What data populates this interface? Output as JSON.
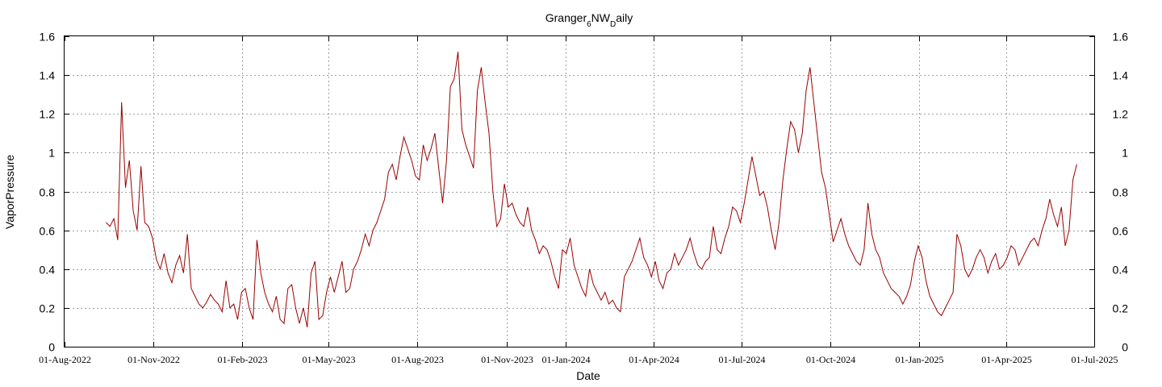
{
  "chart_data": {
    "type": "line",
    "title": {
      "base": "Granger",
      "sub1": "6",
      "mid": "NW",
      "sub2": "D",
      "tail": "aily"
    },
    "xlabel": "Date",
    "ylabel": "VaporPressure",
    "ylim": [
      0,
      1.6
    ],
    "xlim": [
      "2022-08-01",
      "2025-07-01"
    ],
    "yticks": [
      "0",
      "0.2",
      "0.4",
      "0.6",
      "0.8",
      "1",
      "1.2",
      "1.4",
      "1.6"
    ],
    "xticks": [
      {
        "date": "2022-08-01",
        "label": "01-Aug-2022"
      },
      {
        "date": "2022-11-01",
        "label": "01-Nov-2022"
      },
      {
        "date": "2023-02-01",
        "label": "01-Feb-2023"
      },
      {
        "date": "2023-05-01",
        "label": "01-May-2023"
      },
      {
        "date": "2023-08-01",
        "label": "01-Aug-2023"
      },
      {
        "date": "2023-11-01",
        "label": "01-Nov-2023"
      },
      {
        "date": "2024-01-01",
        "label": "01-Jan-2024"
      },
      {
        "date": "2024-04-01",
        "label": "01-Apr-2024"
      },
      {
        "date": "2024-07-01",
        "label": "01-Jul-2024"
      },
      {
        "date": "2024-10-01",
        "label": "01-Oct-2024"
      },
      {
        "date": "2025-01-01",
        "label": "01-Jan-2025"
      },
      {
        "date": "2025-04-01",
        "label": "01-Apr-2025"
      },
      {
        "date": "2025-07-01",
        "label": "01-Jul-2025"
      }
    ],
    "grid": true,
    "colors": {
      "series": "#990000",
      "grid": "#a0a0a0",
      "axis": "#000000"
    },
    "series": [
      {
        "start": "2022-09-13",
        "step_days": 4,
        "values": [
          0.64,
          0.62,
          0.66,
          0.55,
          1.26,
          0.82,
          0.96,
          0.7,
          0.6,
          0.93,
          0.64,
          0.62,
          0.56,
          0.45,
          0.4,
          0.48,
          0.38,
          0.33,
          0.42,
          0.47,
          0.38,
          0.58,
          0.3,
          0.26,
          0.22,
          0.2,
          0.23,
          0.27,
          0.24,
          0.22,
          0.18,
          0.34,
          0.2,
          0.22,
          0.14,
          0.28,
          0.3,
          0.2,
          0.14,
          0.55,
          0.38,
          0.28,
          0.22,
          0.18,
          0.26,
          0.14,
          0.12,
          0.3,
          0.32,
          0.2,
          0.12,
          0.2,
          0.1,
          0.38,
          0.44,
          0.14,
          0.16,
          0.28,
          0.36,
          0.28,
          0.36,
          0.44,
          0.28,
          0.3,
          0.4,
          0.44,
          0.5,
          0.58,
          0.52,
          0.6,
          0.64,
          0.7,
          0.76,
          0.9,
          0.94,
          0.86,
          0.98,
          1.08,
          1.02,
          0.96,
          0.88,
          0.86,
          1.04,
          0.96,
          1.02,
          1.1,
          0.92,
          0.74,
          0.96,
          1.34,
          1.38,
          1.52,
          1.12,
          1.04,
          0.98,
          0.92,
          1.32,
          1.44,
          1.26,
          1.1,
          0.8,
          0.62,
          0.66,
          0.84,
          0.72,
          0.74,
          0.68,
          0.64,
          0.62,
          0.72,
          0.6,
          0.55,
          0.48,
          0.52,
          0.5,
          0.44,
          0.36,
          0.3,
          0.5,
          0.48,
          0.56,
          0.42,
          0.36,
          0.3,
          0.26,
          0.4,
          0.32,
          0.28,
          0.24,
          0.28,
          0.22,
          0.24,
          0.2,
          0.18,
          0.36,
          0.4,
          0.44,
          0.5,
          0.56,
          0.46,
          0.42,
          0.36,
          0.44,
          0.34,
          0.3,
          0.38,
          0.4,
          0.48,
          0.42,
          0.46,
          0.5,
          0.56,
          0.48,
          0.42,
          0.4,
          0.44,
          0.46,
          0.62,
          0.5,
          0.48,
          0.56,
          0.62,
          0.72,
          0.7,
          0.64,
          0.74,
          0.86,
          0.98,
          0.88,
          0.78,
          0.8,
          0.72,
          0.6,
          0.5,
          0.64,
          0.86,
          1.02,
          1.16,
          1.12,
          1.0,
          1.1,
          1.32,
          1.44,
          1.26,
          1.08,
          0.9,
          0.82,
          0.68,
          0.54,
          0.6,
          0.66,
          0.58,
          0.52,
          0.48,
          0.44,
          0.42,
          0.5,
          0.74,
          0.58,
          0.5,
          0.46,
          0.38,
          0.34,
          0.3,
          0.28,
          0.26,
          0.22,
          0.26,
          0.32,
          0.44,
          0.52,
          0.46,
          0.34,
          0.26,
          0.22,
          0.18,
          0.16,
          0.2,
          0.24,
          0.28,
          0.58,
          0.52,
          0.4,
          0.36,
          0.4,
          0.46,
          0.5,
          0.46,
          0.38,
          0.44,
          0.48,
          0.4,
          0.42,
          0.46,
          0.52,
          0.5,
          0.42,
          0.46,
          0.5,
          0.54,
          0.56,
          0.52,
          0.6,
          0.66,
          0.76,
          0.68,
          0.62,
          0.72,
          0.52,
          0.6,
          0.86,
          0.94
        ]
      }
    ]
  }
}
